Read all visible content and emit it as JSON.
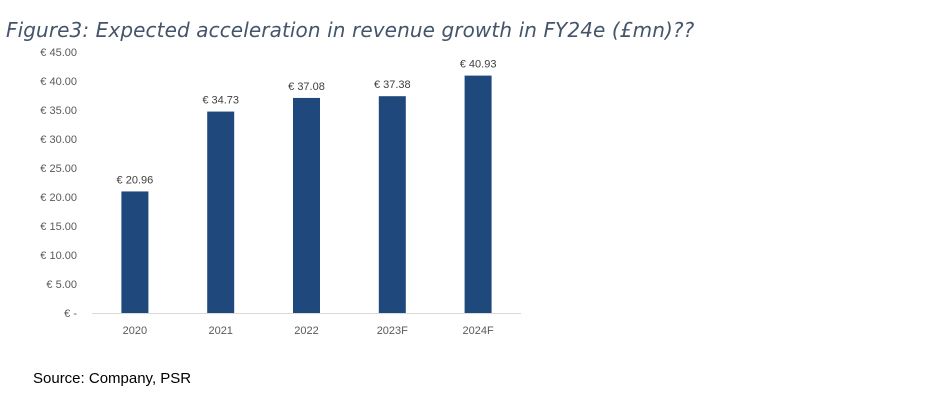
{
  "title": "Figure3: Expected acceleration in revenue growth in FY24e (£mn)??",
  "source": "Source: Company, PSR",
  "chart_data": {
    "type": "bar",
    "categories": [
      "2020",
      "2021",
      "2022",
      "2023F",
      "2024F"
    ],
    "values": [
      20.96,
      34.73,
      37.08,
      37.38,
      40.93
    ],
    "data_labels": [
      "€ 20.96",
      "€ 34.73",
      "€ 37.08",
      "€ 37.38",
      "€ 40.93"
    ],
    "ylim": [
      0,
      45
    ],
    "yticks": [
      0,
      5,
      10,
      15,
      20,
      25,
      30,
      35,
      40,
      45
    ],
    "ytick_labels": [
      "€ -",
      "€ 5.00",
      "€ 10.00",
      "€ 15.00",
      "€ 20.00",
      "€ 25.00",
      "€ 30.00",
      "€ 35.00",
      "€ 40.00",
      "€ 45.00"
    ],
    "xlabel": "",
    "ylabel": "",
    "grid": false,
    "bar_color": "#1F497D",
    "axis_color": "#D9D9D9"
  }
}
